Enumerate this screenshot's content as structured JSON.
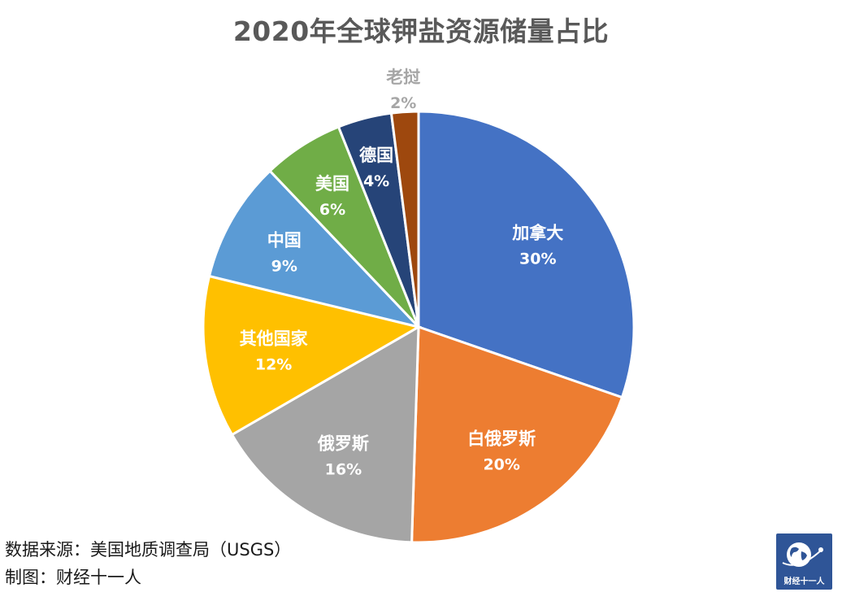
{
  "title": "2020年全球钾盐资源储量占比",
  "chart_data": {
    "type": "pie",
    "title": "2020年全球钾盐资源储量占比",
    "start": "12 o'clock, clockwise",
    "slices": [
      {
        "label": "加拿大",
        "value": 30,
        "value_text": "30%",
        "color": "#4472c4",
        "label_color": "#ffffff"
      },
      {
        "label": "白俄罗斯",
        "value": 20,
        "value_text": "20%",
        "color": "#ed7d31",
        "label_color": "#ffffff"
      },
      {
        "label": "俄罗斯",
        "value": 16,
        "value_text": "16%",
        "color": "#a5a5a5",
        "label_color": "#ffffff"
      },
      {
        "label": "其他国家",
        "value": 12,
        "value_text": "12%",
        "color": "#ffc000",
        "label_color": "#ffffff"
      },
      {
        "label": "中国",
        "value": 9,
        "value_text": "9%",
        "color": "#5b9bd5",
        "label_color": "#ffffff"
      },
      {
        "label": "美国",
        "value": 6,
        "value_text": "6%",
        "color": "#70ad47",
        "label_color": "#ffffff"
      },
      {
        "label": "德国",
        "value": 4,
        "value_text": "4%",
        "color": "#264478",
        "label_color": "#ffffff"
      },
      {
        "label": "老挝",
        "value": 2,
        "value_text": "2%",
        "color": "#9e480e",
        "label_color": "#a6a6a6"
      }
    ]
  },
  "footer": {
    "source": "数据来源：美国地质调查局（USGS）",
    "maker": "制图：财经十一人"
  },
  "logo": {
    "text": "财经十一人",
    "icon": "globe-icon",
    "bg_color": "#2f5597"
  }
}
